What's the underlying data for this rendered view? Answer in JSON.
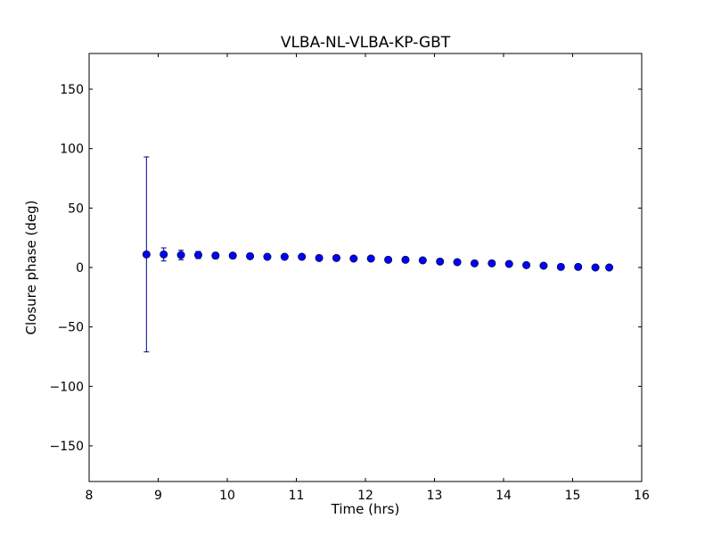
{
  "chart_data": {
    "type": "scatter",
    "title": "VLBA-NL-VLBA-KP-GBT",
    "xlabel": "Time (hrs)",
    "ylabel": "Closure phase (deg)",
    "xlim": [
      8,
      16
    ],
    "ylim": [
      -180,
      180
    ],
    "xticks": [
      8,
      9,
      10,
      11,
      12,
      13,
      14,
      15,
      16
    ],
    "yticks": [
      150,
      100,
      50,
      0,
      -50,
      -100,
      -150
    ],
    "xtick_labels": [
      "8",
      "9",
      "10",
      "11",
      "12",
      "13",
      "14",
      "15",
      "16"
    ],
    "ytick_labels": [
      "150",
      "100",
      "50",
      "0",
      "−50",
      "−100",
      "−150"
    ],
    "grid": false,
    "series": [
      {
        "color": "#0000ff",
        "error_color": "#00008b",
        "points": [
          {
            "x": 8.83,
            "y": 11.0,
            "err": 82.0
          },
          {
            "x": 9.08,
            "y": 11.0,
            "err": 5.5
          },
          {
            "x": 9.33,
            "y": 10.5,
            "err": 4.0
          },
          {
            "x": 9.58,
            "y": 10.5,
            "err": 3.0
          },
          {
            "x": 9.83,
            "y": 10.0,
            "err": 2.5
          },
          {
            "x": 10.08,
            "y": 10.0,
            "err": 2.0
          },
          {
            "x": 10.33,
            "y": 9.5,
            "err": 1.5
          },
          {
            "x": 10.58,
            "y": 9.0,
            "err": 1.5
          },
          {
            "x": 10.83,
            "y": 9.0,
            "err": 1.0
          },
          {
            "x": 11.08,
            "y": 9.0,
            "err": 1.0
          },
          {
            "x": 11.33,
            "y": 8.0,
            "err": 1.0
          },
          {
            "x": 11.58,
            "y": 8.0,
            "err": 1.0
          },
          {
            "x": 11.83,
            "y": 7.5,
            "err": 1.0
          },
          {
            "x": 12.08,
            "y": 7.5,
            "err": 1.0
          },
          {
            "x": 12.33,
            "y": 6.5,
            "err": 1.0
          },
          {
            "x": 12.58,
            "y": 6.5,
            "err": 1.0
          },
          {
            "x": 12.83,
            "y": 6.0,
            "err": 1.0
          },
          {
            "x": 13.08,
            "y": 5.0,
            "err": 1.0
          },
          {
            "x": 13.33,
            "y": 4.5,
            "err": 1.0
          },
          {
            "x": 13.58,
            "y": 3.5,
            "err": 1.0
          },
          {
            "x": 13.83,
            "y": 3.5,
            "err": 1.0
          },
          {
            "x": 14.08,
            "y": 3.0,
            "err": 1.0
          },
          {
            "x": 14.33,
            "y": 2.0,
            "err": 1.0
          },
          {
            "x": 14.58,
            "y": 1.5,
            "err": 1.0
          },
          {
            "x": 14.83,
            "y": 0.5,
            "err": 1.0
          },
          {
            "x": 15.08,
            "y": 0.5,
            "err": 1.0
          },
          {
            "x": 15.33,
            "y": 0.0,
            "err": 1.0
          },
          {
            "x": 15.53,
            "y": 0.0,
            "err": 1.0
          }
        ]
      }
    ]
  }
}
